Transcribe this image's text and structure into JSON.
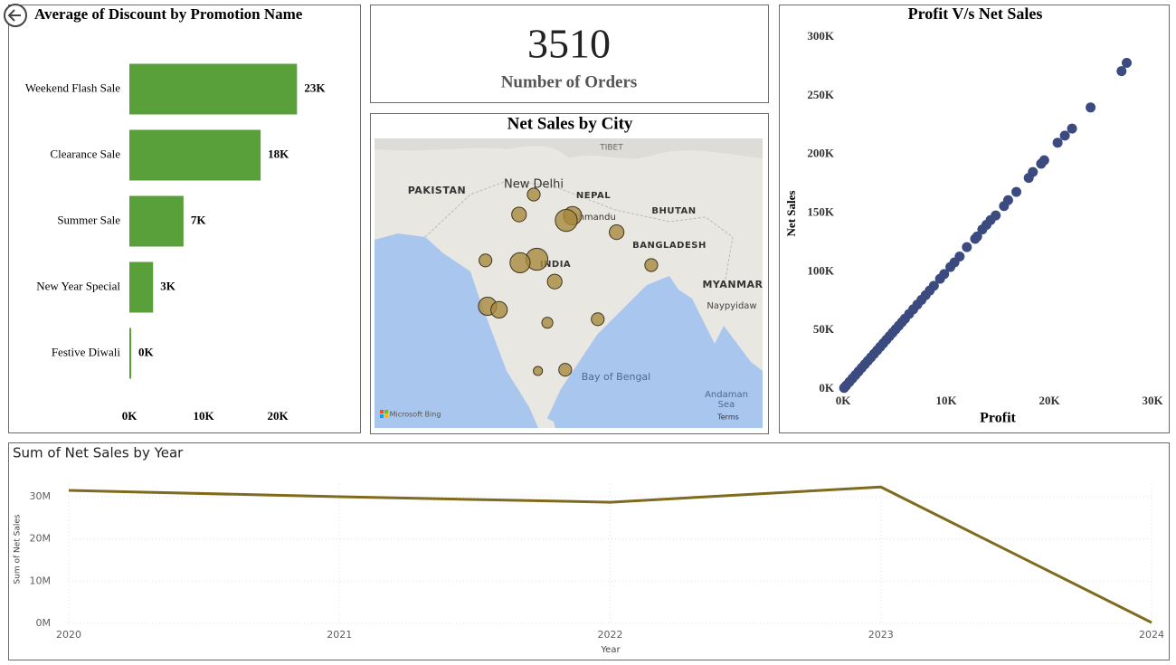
{
  "chart_data": [
    {
      "type": "bar",
      "title": "Average of Discount by Promotion Name",
      "categories": [
        "Weekend Flash Sale",
        "Clearance Sale",
        "Summer Sale",
        "New Year Special",
        "Festive Diwali"
      ],
      "values": [
        22600,
        17700,
        7300,
        3200,
        200
      ],
      "value_labels": [
        "23K",
        "18K",
        "7K",
        "3K",
        "0K"
      ],
      "color": "#5aa03a",
      "xlim": [
        0,
        30000
      ],
      "xticks": [
        {
          "value": 0,
          "label": "0K"
        },
        {
          "value": 10000,
          "label": "10K"
        },
        {
          "value": 20000,
          "label": "20K"
        }
      ]
    },
    {
      "type": "card",
      "value": 3510,
      "label": "Number of Orders"
    },
    {
      "type": "map",
      "title": "Net Sales by City",
      "labels": [
        "PAKISTAN",
        "New Delhi",
        "NEPAL",
        "TIBET",
        "Kathmandu",
        "BHUTAN",
        "INDIA",
        "BANGLADESH",
        "MYANMAR",
        "Naypyidaw",
        "Bay of Bengal",
        "Andaman",
        "Sea",
        "Microsoft Bing",
        "Terms"
      ],
      "x": [
        77.2,
        75.8,
        80.9,
        80.3,
        85.1,
        72.6,
        77.5,
        75.9,
        79.2,
        88.4,
        72.8,
        73.9,
        78.5,
        83.3,
        77.6,
        80.2
      ],
      "y": [
        28.6,
        26.9,
        26.8,
        26.4,
        25.4,
        23.0,
        23.1,
        22.8,
        21.2,
        22.6,
        19.1,
        18.8,
        17.7,
        18.0,
        13.6,
        13.7
      ],
      "values": [
        4.9,
        6.4,
        10,
        14.4,
        6.4,
        4.9,
        14.4,
        12.1,
        6.4,
        4.9,
        10,
        8.1,
        3.6,
        4.9,
        2.5,
        4.9
      ],
      "color": "#a8893f"
    },
    {
      "type": "scatter",
      "title": "Profit V/s Net Sales",
      "xlabel": "Profit",
      "ylabel": "Net Sales",
      "color": "#3b4a7f",
      "x": [
        27500,
        27000,
        24000,
        22200,
        21500,
        20800,
        19500,
        19200,
        18400,
        18000,
        16800,
        16000,
        15600,
        14800,
        14300,
        13900,
        13500,
        13000,
        12800,
        12000,
        11300,
        10800,
        10400,
        9800,
        9400,
        8800,
        8400,
        8000,
        7600,
        7200,
        6800,
        6400,
        6000,
        5700,
        5400,
        5100,
        4800,
        4500,
        4200,
        3900,
        3600,
        3300,
        3000,
        2700,
        2400,
        2100,
        1800,
        1500,
        1200,
        900,
        600,
        300,
        100
      ],
      "y": [
        278000,
        271000,
        240000,
        222000,
        216000,
        210000,
        195000,
        192000,
        185000,
        180000,
        168000,
        161000,
        156000,
        148000,
        144000,
        140000,
        136000,
        130000,
        128000,
        121000,
        113000,
        108000,
        104000,
        98000,
        94000,
        88000,
        84000,
        80000,
        76000,
        72000,
        68000,
        64000,
        60000,
        57000,
        54000,
        51000,
        48000,
        45000,
        42000,
        39000,
        36000,
        33000,
        30000,
        27000,
        24000,
        21000,
        18000,
        15000,
        12000,
        9000,
        6000,
        3000,
        1000
      ],
      "xlim": [
        0,
        30000
      ],
      "ylim": [
        0,
        300000
      ],
      "xticks": [
        {
          "value": 0,
          "label": "0K"
        },
        {
          "value": 10000,
          "label": "10K"
        },
        {
          "value": 20000,
          "label": "20K"
        },
        {
          "value": 30000,
          "label": "30K"
        }
      ],
      "yticks": [
        {
          "value": 0,
          "label": "0K"
        },
        {
          "value": 50000,
          "label": "50K"
        },
        {
          "value": 100000,
          "label": "100K"
        },
        {
          "value": 150000,
          "label": "150K"
        },
        {
          "value": 200000,
          "label": "200K"
        },
        {
          "value": 250000,
          "label": "250K"
        },
        {
          "value": 300000,
          "label": "300K"
        }
      ]
    },
    {
      "type": "line",
      "title": "Sum of Net Sales by Year",
      "xlabel": "Year",
      "ylabel": "Sum of Net Sales",
      "color": "#7f6a1d",
      "grid": true,
      "x": [
        2020,
        2021,
        2022,
        2023,
        2024
      ],
      "values": [
        31500000,
        30000000,
        28700000,
        32300000,
        200000
      ],
      "xlim": [
        2020,
        2024
      ],
      "ylim": [
        0,
        33000000
      ],
      "xticks": [
        2020,
        2021,
        2022,
        2023,
        2024
      ],
      "yticks": [
        {
          "value": 0,
          "label": "0M"
        },
        {
          "value": 10000000,
          "label": "10M"
        },
        {
          "value": 20000000,
          "label": "20M"
        },
        {
          "value": 30000000,
          "label": "30M"
        }
      ]
    }
  ]
}
